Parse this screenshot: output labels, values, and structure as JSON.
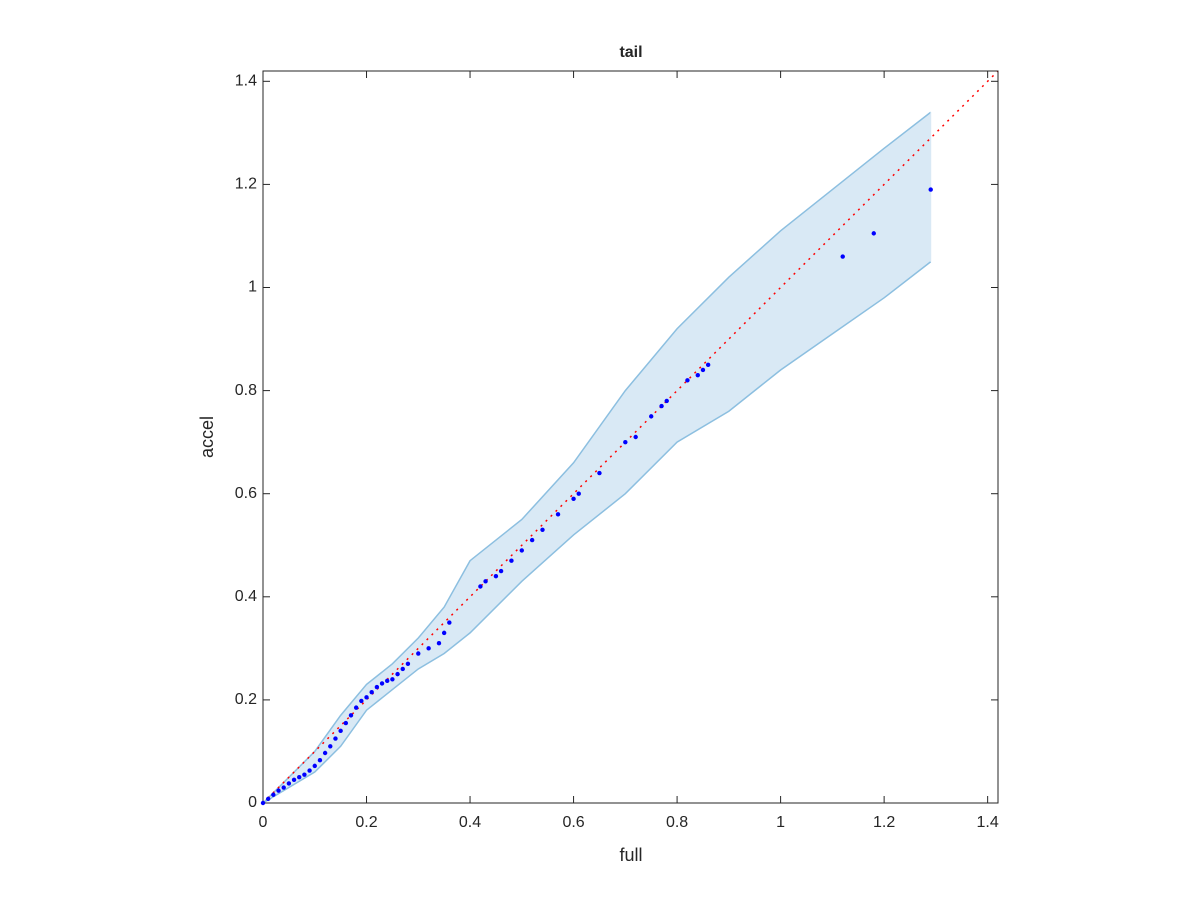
{
  "chart_data": {
    "type": "scatter",
    "title": "tail",
    "x_label": "full",
    "y_label": "accel",
    "xlim": [
      0,
      1.42
    ],
    "ylim": [
      0,
      1.42
    ],
    "xticks": [
      0,
      0.2,
      0.4,
      0.6,
      0.8,
      1,
      1.2,
      1.4
    ],
    "yticks": [
      0,
      0.2,
      0.4,
      0.6,
      0.8,
      1,
      1.2,
      1.4
    ],
    "series": [
      {
        "color": "#0000ff",
        "x": [
          0,
          0.01,
          0.02,
          0.03,
          0.04,
          0.05,
          0.06,
          0.07,
          0.08,
          0.09,
          0.1,
          0.11,
          0.12,
          0.13,
          0.14,
          0.15,
          0.16,
          0.17,
          0.18,
          0.19,
          0.2,
          0.21,
          0.22,
          0.23,
          0.24,
          0.25,
          0.26,
          0.27,
          0.28,
          0.3,
          0.32,
          0.34,
          0.35,
          0.36,
          0.42,
          0.43,
          0.45,
          0.46,
          0.48,
          0.5,
          0.52,
          0.54,
          0.57,
          0.6,
          0.61,
          0.65,
          0.7,
          0.72,
          0.75,
          0.77,
          0.78,
          0.82,
          0.84,
          0.85,
          0.86,
          1.12,
          1.18,
          1.29
        ],
        "values": [
          0,
          0.008,
          0.016,
          0.024,
          0.03,
          0.038,
          0.045,
          0.05,
          0.055,
          0.063,
          0.072,
          0.083,
          0.097,
          0.11,
          0.125,
          0.14,
          0.155,
          0.17,
          0.185,
          0.198,
          0.205,
          0.215,
          0.225,
          0.232,
          0.237,
          0.24,
          0.25,
          0.26,
          0.27,
          0.29,
          0.3,
          0.31,
          0.33,
          0.35,
          0.42,
          0.43,
          0.44,
          0.45,
          0.47,
          0.49,
          0.51,
          0.53,
          0.56,
          0.59,
          0.6,
          0.64,
          0.7,
          0.71,
          0.75,
          0.77,
          0.78,
          0.82,
          0.83,
          0.84,
          0.85,
          1.06,
          1.105,
          1.19
        ]
      }
    ],
    "band": {
      "color": "#8cbfe0",
      "fill": "#d9e9f5",
      "x": [
        0,
        0.05,
        0.1,
        0.15,
        0.2,
        0.25,
        0.3,
        0.35,
        0.4,
        0.5,
        0.6,
        0.7,
        0.8,
        0.9,
        1,
        1.1,
        1.2,
        1.29
      ],
      "upper": [
        0,
        0.05,
        0.1,
        0.17,
        0.23,
        0.27,
        0.32,
        0.38,
        0.47,
        0.55,
        0.66,
        0.8,
        0.92,
        1.02,
        1.11,
        1.19,
        1.27,
        1.34
      ],
      "lower": [
        0,
        0.03,
        0.06,
        0.11,
        0.18,
        0.22,
        0.26,
        0.29,
        0.33,
        0.43,
        0.52,
        0.6,
        0.7,
        0.76,
        0.84,
        0.91,
        0.98,
        1.05
      ]
    },
    "reference_line": {
      "color": "#ff0000",
      "x": [
        0,
        1.42
      ],
      "values": [
        0,
        1.42
      ]
    }
  }
}
